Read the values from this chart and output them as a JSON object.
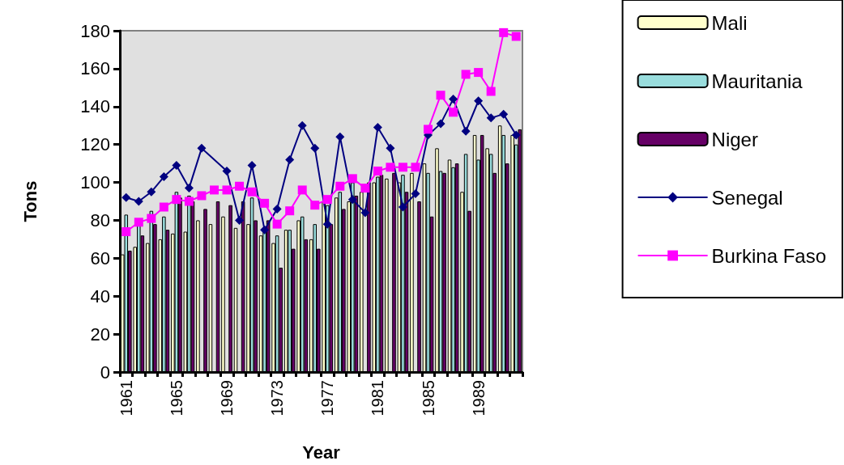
{
  "chart_data": {
    "type": "bar",
    "xlabel": "Year",
    "ylabel": "Tons",
    "categories": [
      "1961",
      null,
      null,
      null,
      "1965",
      null,
      null,
      null,
      "1969",
      null,
      null,
      null,
      "1973",
      null,
      null,
      null,
      "1977",
      null,
      null,
      null,
      "1981",
      null,
      null,
      null,
      "1985",
      null,
      null,
      null,
      "1989",
      null,
      null,
      null
    ],
    "series": [
      {
        "name": "Mali",
        "color": "#ffffcc",
        "values": [
          62,
          66,
          68,
          70,
          73,
          74,
          80,
          78,
          82,
          76,
          78,
          72,
          68,
          75,
          80,
          70,
          90,
          92,
          90,
          95,
          100,
          102,
          100,
          105,
          110,
          118,
          112,
          95,
          125,
          118,
          130,
          125
        ]
      },
      {
        "name": "Mauritania",
        "color": "#99dddd",
        "values": [
          83,
          78,
          85,
          82,
          95,
          93,
          null,
          null,
          null,
          null,
          92,
          75,
          72,
          75,
          82,
          78,
          88,
          95,
          100,
          null,
          103,
          null,
          104,
          null,
          105,
          106,
          108,
          115,
          112,
          115,
          125,
          120
        ]
      },
      {
        "name": "Niger",
        "color": "#660066",
        "values": [
          64,
          72,
          78,
          75,
          92,
          90,
          86,
          90,
          88,
          90,
          80,
          80,
          55,
          65,
          70,
          65,
          78,
          86,
          93,
          100,
          104,
          105,
          95,
          90,
          82,
          105,
          110,
          85,
          125,
          105,
          110,
          128
        ]
      },
      {
        "name": "Senegal",
        "type": "line",
        "marker": "diamond",
        "color": "#000080",
        "values": [
          92,
          90,
          95,
          103,
          109,
          97,
          118,
          null,
          106,
          80,
          109,
          75,
          86,
          112,
          130,
          118,
          78,
          124,
          91,
          84,
          129,
          118,
          87,
          94,
          125,
          131,
          144,
          127,
          143,
          134,
          136,
          125
        ]
      },
      {
        "name": "Burkina Faso",
        "type": "line",
        "marker": "square",
        "color": "#ff00ff",
        "values": [
          74,
          79,
          81,
          87,
          91,
          90,
          93,
          96,
          96,
          98,
          95,
          89,
          78,
          85,
          96,
          88,
          91,
          98,
          102,
          97,
          106,
          108,
          108,
          108,
          128,
          146,
          137,
          157,
          158,
          148,
          179,
          177
        ]
      }
    ],
    "ylim": [
      0,
      180
    ],
    "yticks": [
      0,
      20,
      40,
      60,
      80,
      100,
      120,
      140,
      160,
      180
    ],
    "legend": "right"
  }
}
